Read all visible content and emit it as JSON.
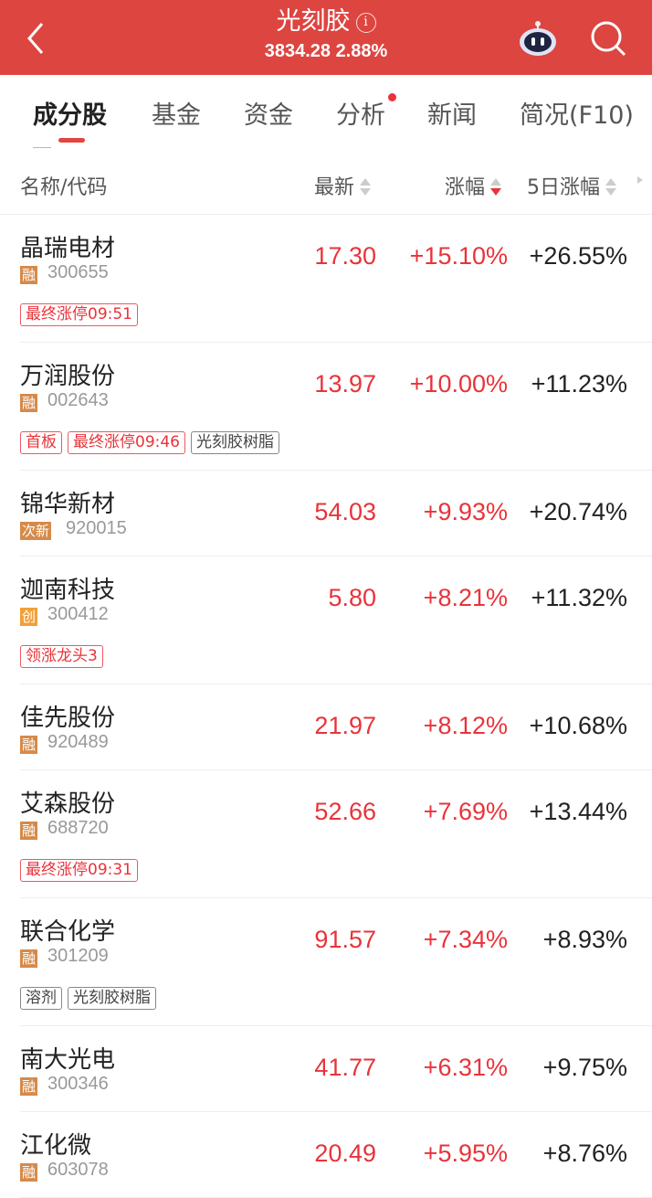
{
  "header": {
    "title": "光刻胶",
    "index_value": "3834.28",
    "index_change": "2.88%"
  },
  "tabs": [
    {
      "label": "成分股",
      "active": true
    },
    {
      "label": "基金"
    },
    {
      "label": "资金"
    },
    {
      "label": "分析",
      "dot": true
    },
    {
      "label": "新闻"
    },
    {
      "label": "简况(F10)"
    }
  ],
  "columns": {
    "name": "名称/代码",
    "price": "最新",
    "change": "涨幅",
    "change5": "5日涨幅"
  },
  "rows": [
    {
      "name": "晶瑞电材",
      "badge": "融",
      "code": "300655",
      "price": "17.30",
      "change": "+15.10%",
      "change5": "+26.55%",
      "tags": [
        {
          "t": "最终涨停09:51",
          "c": "red"
        }
      ]
    },
    {
      "name": "万润股份",
      "badge": "融",
      "code": "002643",
      "price": "13.97",
      "change": "+10.00%",
      "change5": "+11.23%",
      "tags": [
        {
          "t": "首板",
          "c": "red"
        },
        {
          "t": "最终涨停09:46",
          "c": "red"
        },
        {
          "t": "光刻胶树脂",
          "c": "gray"
        }
      ]
    },
    {
      "name": "锦华新材",
      "badge": "次新",
      "code": "920015",
      "price": "54.03",
      "change": "+9.93%",
      "change5": "+20.74%",
      "tags": []
    },
    {
      "name": "迦南科技",
      "badge": "创",
      "code": "300412",
      "price": "5.80",
      "change": "+8.21%",
      "change5": "+11.32%",
      "tags": [
        {
          "t": "领涨龙头3",
          "c": "red"
        }
      ]
    },
    {
      "name": "佳先股份",
      "badge": "融",
      "code": "920489",
      "price": "21.97",
      "change": "+8.12%",
      "change5": "+10.68%",
      "tags": []
    },
    {
      "name": "艾森股份",
      "badge": "融",
      "code": "688720",
      "price": "52.66",
      "change": "+7.69%",
      "change5": "+13.44%",
      "tags": [
        {
          "t": "最终涨停09:31",
          "c": "red"
        }
      ]
    },
    {
      "name": "联合化学",
      "badge": "融",
      "code": "301209",
      "price": "91.57",
      "change": "+7.34%",
      "change5": "+8.93%",
      "tags": [
        {
          "t": "溶剂",
          "c": "gray"
        },
        {
          "t": "光刻胶树脂",
          "c": "gray"
        }
      ]
    },
    {
      "name": "南大光电",
      "badge": "融",
      "code": "300346",
      "price": "41.77",
      "change": "+6.31%",
      "change5": "+9.75%",
      "tags": []
    },
    {
      "name": "江化微",
      "badge": "融",
      "code": "603078",
      "price": "20.49",
      "change": "+5.95%",
      "change5": "+8.76%",
      "tags": []
    }
  ],
  "colors": {
    "header": "#dd4541",
    "up": "#e8333a",
    "badge": "#d68a4a",
    "badge_chuang": "#f0a03a"
  }
}
